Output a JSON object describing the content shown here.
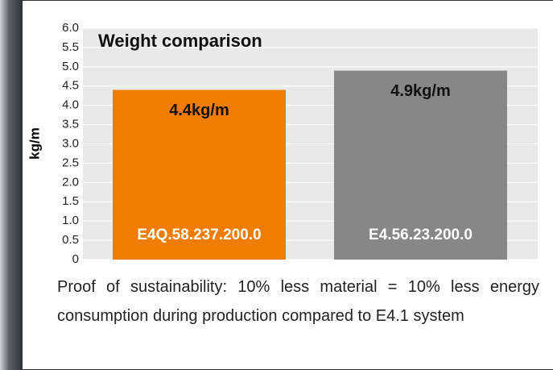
{
  "chart_data": {
    "type": "bar",
    "title": "Weight comparison",
    "y_label": "kg/m",
    "categories": [
      "E4Q.58.237.200.0",
      "E4.56.23.200.0"
    ],
    "values": [
      4.4,
      4.9
    ],
    "value_labels": [
      "4.4kg/m",
      "4.9kg/m"
    ],
    "colors": [
      "#f07d00",
      "#878787"
    ],
    "ylim": [
      0,
      6
    ],
    "yticks": [
      0,
      0.5,
      {
        "value": 1,
        "label": "1.0"
      },
      1.5,
      {
        "value": 2,
        "label": "2.0"
      },
      2.5,
      {
        "value": 3,
        "label": "3.0"
      },
      3.5,
      {
        "value": 4,
        "label": "4.0"
      },
      4.5,
      {
        "value": 5,
        "label": "5.0"
      },
      5.5,
      {
        "value": 6,
        "label": "6.0"
      }
    ],
    "grid": true
  },
  "caption": "Proof of sustainability: 10% less material = 10% less energy consumption during production compared to E4.1 system"
}
